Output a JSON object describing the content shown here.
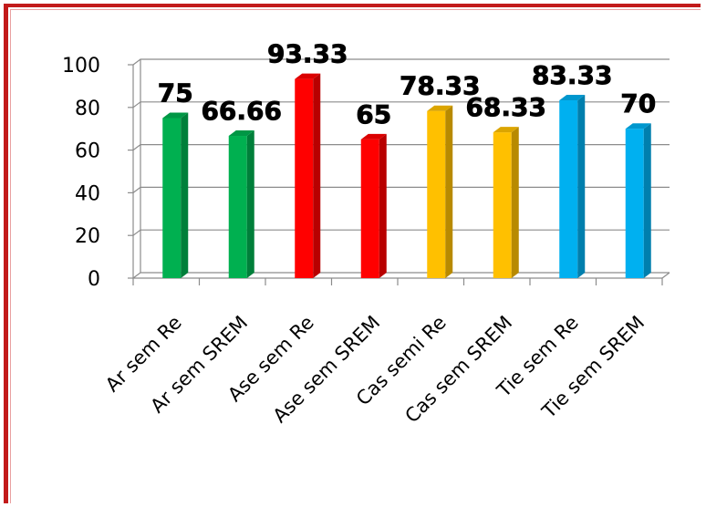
{
  "chart_data": {
    "type": "bar",
    "categories": [
      "Ar  sem Re",
      "Ar  sem SREM",
      "Ase sem Re",
      "Ase sem SREM",
      "Cas semi Re",
      "Cas sem SREM",
      "Tie sem Re",
      "Tie sem SREM"
    ],
    "values": [
      75,
      66.66,
      93.33,
      65,
      78.33,
      68.33,
      83.33,
      70
    ],
    "value_labels": [
      "75",
      "66.66",
      "93.33",
      "65",
      "78.33",
      "68.33",
      "83.33",
      "70"
    ],
    "colors": [
      "#00b050",
      "#00b050",
      "#ff0000",
      "#ff0000",
      "#ffc000",
      "#ffc000",
      "#00b0f0",
      "#00b0f0"
    ],
    "title": "",
    "xlabel": "",
    "ylabel": "",
    "ylim": [
      0,
      100
    ],
    "yticks": [
      0,
      20,
      40,
      60,
      80,
      100
    ],
    "grid": true,
    "legend": "none",
    "style": "3d-clustered-column"
  }
}
